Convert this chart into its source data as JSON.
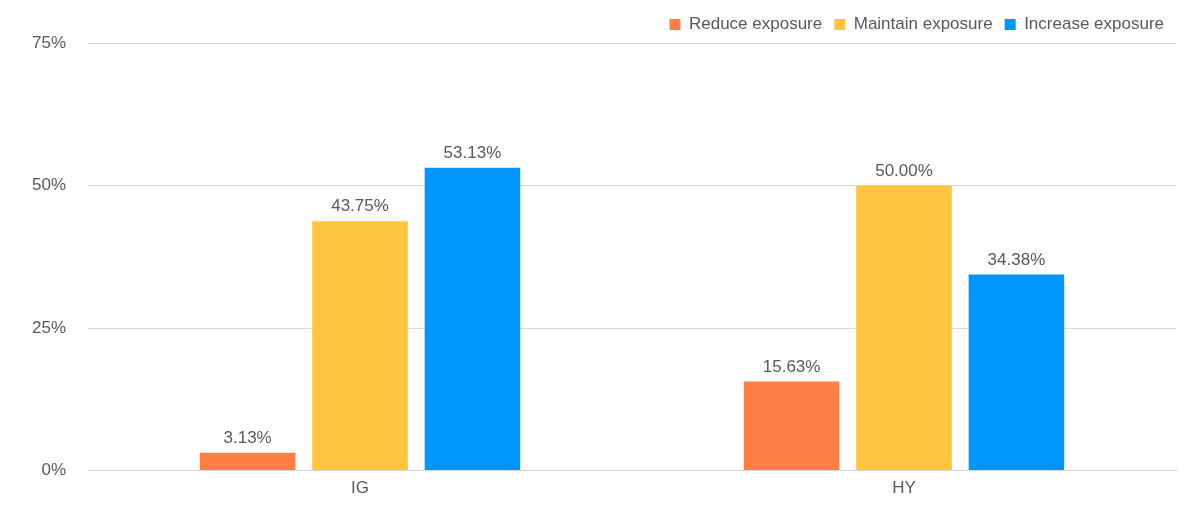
{
  "chart_data": {
    "type": "bar",
    "categories": [
      "IG",
      "HY"
    ],
    "series": [
      {
        "name": "Reduce exposure",
        "color": "#ff7f45",
        "values": [
          3.13,
          15.63
        ],
        "value_labels": [
          "3.13%",
          "15.63%"
        ]
      },
      {
        "name": "Maintain exposure",
        "color": "#ffc440",
        "values": [
          43.75,
          50.0
        ],
        "value_labels": [
          "43.75%",
          "50.00%"
        ]
      },
      {
        "name": "Increase exposure",
        "color": "#0096ff",
        "values": [
          53.13,
          34.38
        ],
        "value_labels": [
          "53.13%",
          "34.38%"
        ]
      }
    ],
    "ylim": [
      0,
      75
    ],
    "yticks": [
      {
        "value": 0,
        "label": "0%"
      },
      {
        "value": 25,
        "label": "25%"
      },
      {
        "value": 50,
        "label": "50%"
      },
      {
        "value": 75,
        "label": "75%"
      }
    ],
    "grid": "y",
    "legend": "top right"
  }
}
